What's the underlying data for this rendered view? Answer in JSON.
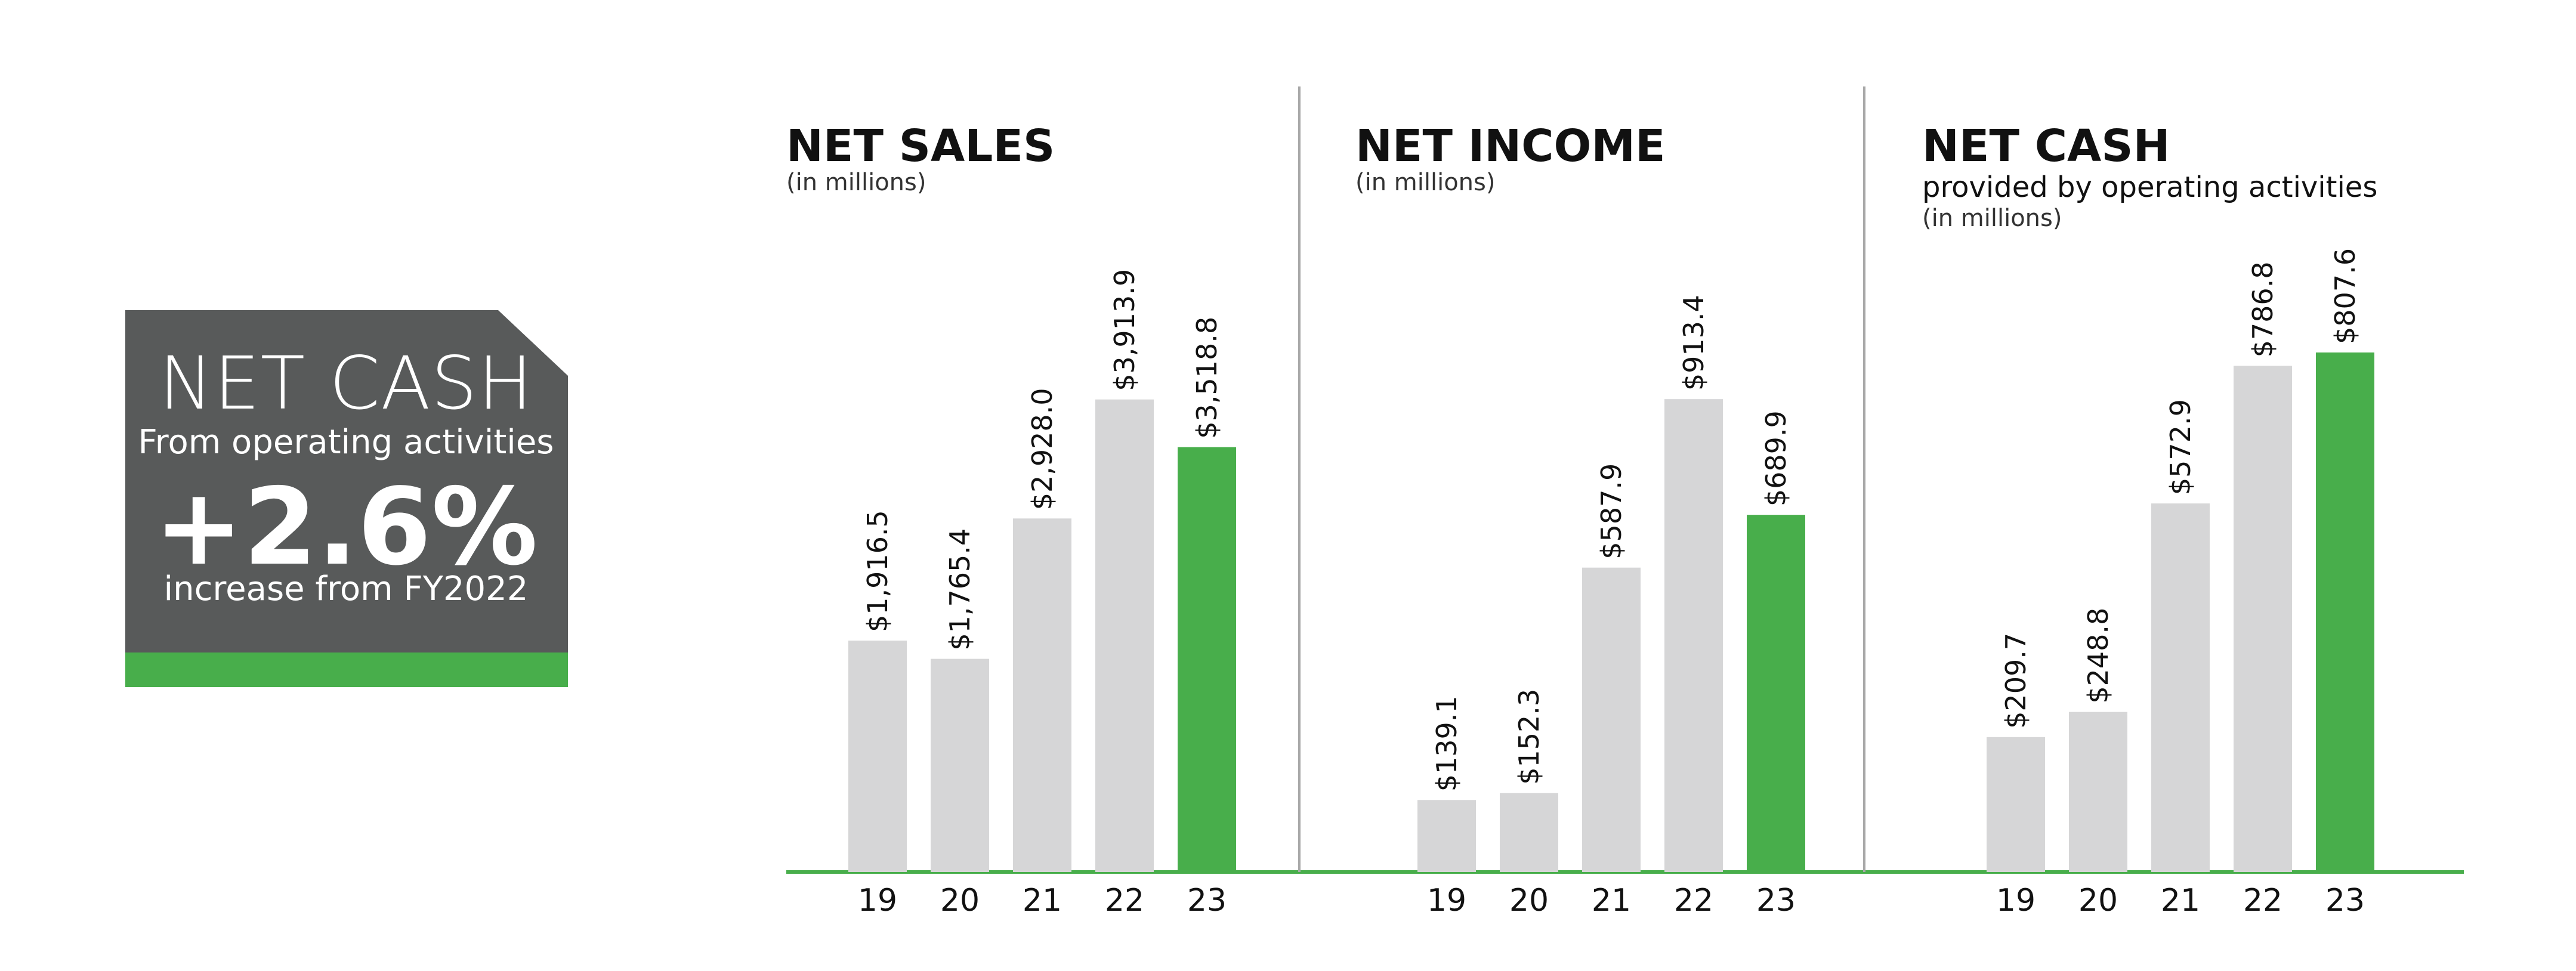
{
  "colors": {
    "callout_bg": "#585a5a",
    "accent_green": "#48ae4b",
    "bar_gray": "#d6d6d7",
    "divider": "#a8a8a8",
    "text": "#111111"
  },
  "callout": {
    "title": "NET CASH",
    "subtitle": "From operating activities",
    "percent": "+2.6%",
    "note": "increase from FY2022"
  },
  "chart_data": [
    {
      "type": "bar",
      "title": "NET SALES",
      "subtitle": "",
      "unit_label": "(in millions)",
      "categories": [
        "19",
        "20",
        "21",
        "22",
        "23"
      ],
      "values": [
        1916.5,
        1765.4,
        2928.0,
        3913.9,
        3518.8
      ],
      "value_labels": [
        "$1,916.5",
        "$1,765.4",
        "$2,928.0",
        "$3,913.9",
        "$3,518.8"
      ],
      "highlight_index": 4,
      "ylim": [
        0,
        5360
      ],
      "grid": false,
      "legend": "none"
    },
    {
      "type": "bar",
      "title": "NET INCOME",
      "subtitle": "",
      "unit_label": "(in millions)",
      "categories": [
        "19",
        "20",
        "21",
        "22",
        "23"
      ],
      "values": [
        139.1,
        152.3,
        587.9,
        913.4,
        689.9
      ],
      "value_labels": [
        "$139.1",
        "$152.3",
        "$587.9",
        "$913.4",
        "$689.9"
      ],
      "highlight_index": 4,
      "ylim": [
        0,
        1250
      ],
      "grid": false,
      "legend": "none"
    },
    {
      "type": "bar",
      "title": "NET CASH",
      "subtitle": "provided by operating activities",
      "unit_label": "(in millions)",
      "categories": [
        "19",
        "20",
        "21",
        "22",
        "23"
      ],
      "values": [
        209.7,
        248.8,
        572.9,
        786.8,
        807.6
      ],
      "value_labels": [
        "$209.7",
        "$248.8",
        "$572.9",
        "$786.8",
        "$807.6"
      ],
      "highlight_index": 4,
      "ylim": [
        0,
        1006
      ],
      "grid": false,
      "legend": "none"
    }
  ]
}
